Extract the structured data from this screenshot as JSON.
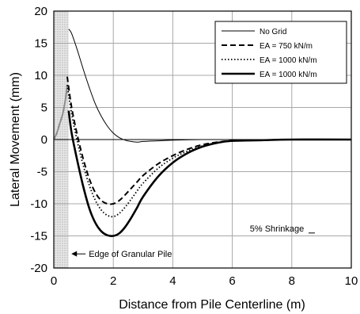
{
  "chart_data": {
    "type": "line",
    "title": "",
    "xlabel": "Distance from Pile Centerline (m)",
    "ylabel": "Lateral Movement (mm)",
    "xlim": [
      0,
      10
    ],
    "ylim": [
      -20,
      20
    ],
    "xticks": [
      0,
      2,
      4,
      6,
      8,
      10
    ],
    "yticks": [
      -20,
      -15,
      -10,
      -5,
      0,
      5,
      10,
      15,
      20
    ],
    "grid": true,
    "legend_position": "top-right",
    "series": [
      {
        "name": "No Grid",
        "style": "thin-solid",
        "x": [
          0.5,
          0.6,
          0.8,
          1.0,
          1.2,
          1.4,
          1.6,
          1.8,
          2.0,
          2.2,
          2.4,
          2.6,
          2.8,
          3.0,
          3.5,
          4.0,
          5.0,
          6.0,
          8.0,
          10.0
        ],
        "y": [
          17.2,
          16.5,
          13.8,
          10.8,
          8.0,
          5.5,
          3.6,
          2.1,
          1.0,
          0.3,
          -0.1,
          -0.3,
          -0.4,
          -0.3,
          -0.2,
          -0.1,
          0,
          0,
          0,
          0
        ]
      },
      {
        "name": "EA = 750 kN/m",
        "style": "dashed",
        "x": [
          0.45,
          0.6,
          0.8,
          1.0,
          1.2,
          1.4,
          1.6,
          1.8,
          2.0,
          2.2,
          2.4,
          2.6,
          2.8,
          3.0,
          3.5,
          4.0,
          4.5,
          5.0,
          5.5,
          6.0,
          7.0,
          8.0,
          10.0
        ],
        "y": [
          9.8,
          5.0,
          0.5,
          -3.2,
          -6.2,
          -8.3,
          -9.5,
          -10.0,
          -10.0,
          -9.5,
          -8.6,
          -7.6,
          -6.6,
          -5.6,
          -3.8,
          -2.5,
          -1.5,
          -0.8,
          -0.4,
          -0.2,
          -0.1,
          0,
          0
        ]
      },
      {
        "name": "EA = 1000 kN/m",
        "style": "dotted",
        "x": [
          0.45,
          0.6,
          0.8,
          1.0,
          1.2,
          1.4,
          1.6,
          1.8,
          2.0,
          2.2,
          2.4,
          2.6,
          2.8,
          3.0,
          3.5,
          4.0,
          4.5,
          5.0,
          5.5,
          6.0,
          7.0,
          8.0,
          10.0
        ],
        "y": [
          8.5,
          4.0,
          -0.5,
          -4.2,
          -7.2,
          -9.5,
          -11.0,
          -11.8,
          -12.0,
          -11.5,
          -10.5,
          -9.3,
          -8.0,
          -6.8,
          -4.5,
          -2.9,
          -1.8,
          -1.0,
          -0.5,
          -0.2,
          -0.1,
          0,
          0
        ]
      },
      {
        "name": "EA = 1000 kN/m",
        "style": "thick-solid",
        "x": [
          0.5,
          0.6,
          0.8,
          1.0,
          1.2,
          1.4,
          1.6,
          1.8,
          2.0,
          2.2,
          2.4,
          2.6,
          2.8,
          3.0,
          3.5,
          4.0,
          4.5,
          5.0,
          5.5,
          6.0,
          7.0,
          8.0,
          10.0
        ],
        "y": [
          4.5,
          1.0,
          -3.5,
          -7.5,
          -10.8,
          -13.0,
          -14.3,
          -14.9,
          -15.0,
          -14.6,
          -13.6,
          -12.2,
          -10.6,
          -8.9,
          -5.8,
          -3.6,
          -2.1,
          -1.1,
          -0.5,
          -0.2,
          -0.1,
          0,
          0
        ]
      }
    ],
    "pile_rise": {
      "style": "gray",
      "x": [
        0,
        0.1,
        0.2,
        0.3,
        0.4,
        0.45
      ],
      "y": [
        0,
        1.0,
        2.5,
        4.0,
        6.5,
        8.5
      ]
    },
    "pile_zone": {
      "x0": 0,
      "x1": 0.5
    },
    "annotations": [
      {
        "text": "Edge  of Granular Pile",
        "x": 0.75,
        "y": -17.8
      },
      {
        "text": "5% Shrinkage",
        "x": 7.5,
        "y": -14.3
      }
    ]
  }
}
